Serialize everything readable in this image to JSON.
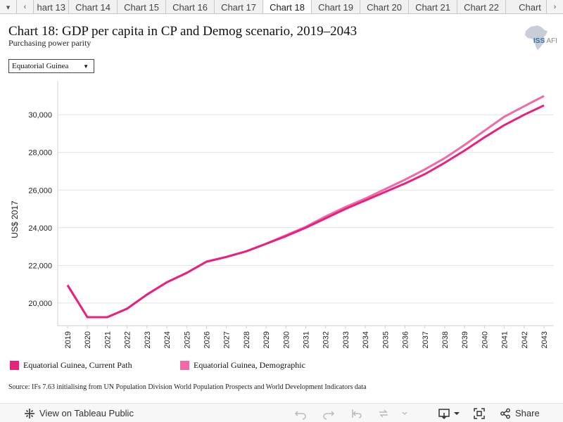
{
  "tabs": {
    "items": [
      "hart 13",
      "Chart 14",
      "Chart 15",
      "Chart 16",
      "Chart 17",
      "Chart 18",
      "Chart 19",
      "Chart 20",
      "Chart 21",
      "Chart 22",
      "Chart"
    ],
    "active_index": 5
  },
  "header": {
    "title": "Chart 18: GDP per capita in CP and Demog scenario, 2019–2043",
    "subtitle": "Purchasing power parity",
    "logo_text": "ISS",
    "logo_suffix": "AFI"
  },
  "filter": {
    "selected": "Equatorial Guinea"
  },
  "chart_data": {
    "type": "line",
    "title": "Chart 18: GDP per capita in CP and Demog scenario, 2019–2043",
    "subtitle": "Purchasing power parity",
    "xlabel": "",
    "ylabel": "US$ 2017",
    "x": [
      2019,
      2020,
      2021,
      2022,
      2023,
      2024,
      2025,
      2026,
      2027,
      2028,
      2029,
      2030,
      2031,
      2032,
      2033,
      2034,
      2035,
      2036,
      2037,
      2038,
      2039,
      2040,
      2041,
      2042,
      2043
    ],
    "ylim": [
      18800,
      31800
    ],
    "yticks": [
      20000,
      22000,
      24000,
      26000,
      28000,
      30000
    ],
    "ytick_labels": [
      "20,000",
      "22,000",
      "24,000",
      "26,000",
      "28,000",
      "30,000"
    ],
    "grid": true,
    "legend_position": "bottom",
    "series": [
      {
        "name": "Equatorial Guinea, Current Path",
        "color": "#e8217f",
        "values": [
          20950,
          19250,
          19250,
          19700,
          20450,
          21100,
          21600,
          22200,
          22450,
          22750,
          23150,
          23550,
          24000,
          24500,
          25000,
          25450,
          25900,
          26350,
          26850,
          27450,
          28100,
          28800,
          29450,
          30000,
          30500
        ]
      },
      {
        "name": "Equatorial Guinea, Demographic",
        "color": "#f06aa8",
        "values": [
          20950,
          19250,
          19250,
          19700,
          20450,
          21100,
          21600,
          22200,
          22450,
          22750,
          23150,
          23600,
          24050,
          24600,
          25100,
          25550,
          26050,
          26550,
          27100,
          27700,
          28400,
          29150,
          29900,
          30450,
          31000
        ]
      }
    ]
  },
  "source": "Source: IFs 7.63 initialising from UN Population Division World Population Prospects and World Development Indicators data",
  "toolbar": {
    "view_label": "View on Tableau Public",
    "share_label": "Share"
  }
}
